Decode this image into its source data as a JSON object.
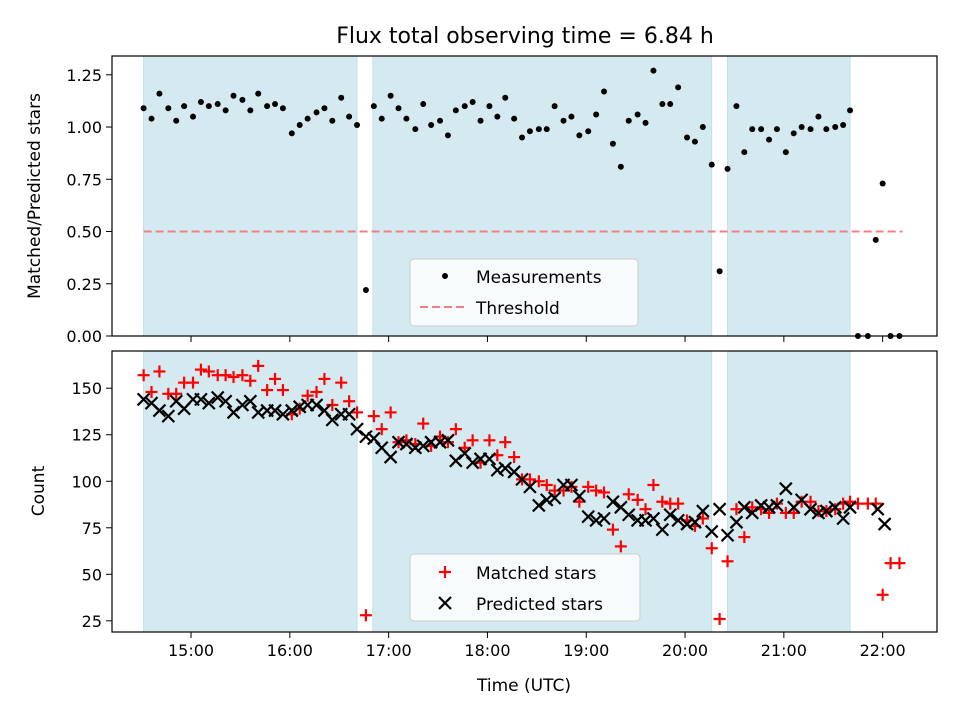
{
  "chart_data": [
    {
      "type": "scatter",
      "title": "Flux total observing time = 6.84 h",
      "ylabel": "Matched/Predicted stars",
      "xlabel": "",
      "xlim": [
        14.2,
        22.55
      ],
      "ylim": [
        0.0,
        1.34
      ],
      "yticks": [
        0.0,
        0.25,
        0.5,
        0.75,
        1.0,
        1.25
      ],
      "ytick_labels": [
        "0.00",
        "0.25",
        "0.50",
        "0.75",
        "1.00",
        "1.25"
      ],
      "xticks": [
        15,
        16,
        17,
        18,
        19,
        20,
        21,
        22
      ],
      "xtick_labels": [
        "",
        "",
        "",
        "",
        "",
        "",
        "",
        ""
      ],
      "shaded_intervals": [
        [
          14.52,
          16.68
        ],
        [
          16.84,
          20.27
        ],
        [
          20.43,
          21.67
        ]
      ],
      "shade_color": "#d5eaf0",
      "legend": {
        "placement": "lower-center",
        "entries": [
          "Measurements",
          "Threshold"
        ]
      },
      "series": [
        {
          "name": "Measurements",
          "color": "#000000",
          "marker": "dot",
          "x": [
            14.52,
            14.6,
            14.68,
            14.77,
            14.85,
            14.93,
            15.02,
            15.1,
            15.18,
            15.27,
            15.35,
            15.43,
            15.52,
            15.6,
            15.68,
            15.77,
            15.85,
            15.93,
            16.02,
            16.1,
            16.18,
            16.27,
            16.35,
            16.43,
            16.52,
            16.6,
            16.68,
            16.77,
            16.85,
            16.93,
            17.02,
            17.1,
            17.18,
            17.27,
            17.35,
            17.43,
            17.52,
            17.6,
            17.68,
            17.77,
            17.85,
            17.93,
            18.02,
            18.1,
            18.18,
            18.27,
            18.35,
            18.43,
            18.52,
            18.6,
            18.68,
            18.77,
            18.85,
            18.93,
            19.02,
            19.1,
            19.18,
            19.27,
            19.35,
            19.43,
            19.52,
            19.6,
            19.68,
            19.77,
            19.85,
            19.93,
            20.02,
            20.1,
            20.18,
            20.27,
            20.35,
            20.43,
            20.52,
            20.6,
            20.68,
            20.77,
            20.85,
            20.93,
            21.02,
            21.1,
            21.18,
            21.27,
            21.35,
            21.43,
            21.52,
            21.6,
            21.67,
            21.75,
            21.85,
            21.93,
            22.0,
            22.08,
            22.17
          ],
          "y": [
            1.09,
            1.04,
            1.16,
            1.09,
            1.03,
            1.1,
            1.05,
            1.12,
            1.1,
            1.11,
            1.08,
            1.15,
            1.13,
            1.08,
            1.16,
            1.1,
            1.11,
            1.09,
            0.97,
            1.01,
            1.04,
            1.07,
            1.09,
            1.03,
            1.14,
            1.05,
            1.01,
            0.22,
            1.1,
            1.04,
            1.15,
            1.09,
            1.04,
            0.99,
            1.11,
            1.01,
            1.03,
            0.96,
            1.08,
            1.1,
            1.12,
            1.03,
            1.1,
            1.05,
            1.14,
            1.04,
            0.95,
            0.98,
            0.99,
            0.99,
            1.1,
            1.03,
            1.05,
            0.96,
            0.98,
            1.06,
            1.17,
            0.92,
            0.81,
            1.03,
            1.06,
            1.02,
            1.27,
            1.11,
            1.11,
            1.19,
            0.95,
            0.93,
            1.0,
            0.82,
            0.31,
            0.8,
            1.1,
            0.88,
            0.99,
            0.99,
            0.94,
            0.99,
            0.88,
            0.97,
            1.0,
            0.99,
            1.05,
            0.99,
            1.0,
            1.01,
            1.08,
            0.0,
            0.0,
            0.46,
            0.73,
            0.0,
            0.0
          ]
        },
        {
          "name": "Threshold",
          "color": "#f08080",
          "style": "dashed",
          "x": [
            14.52,
            22.2
          ],
          "y": [
            0.5,
            0.5
          ]
        }
      ]
    },
    {
      "type": "scatter",
      "title": "",
      "ylabel": "Count",
      "xlabel": "Time (UTC)",
      "xlim": [
        14.2,
        22.55
      ],
      "ylim": [
        19,
        170
      ],
      "yticks": [
        25,
        50,
        75,
        100,
        125,
        150
      ],
      "ytick_labels": [
        "25",
        "50",
        "75",
        "100",
        "125",
        "150"
      ],
      "xticks": [
        15,
        16,
        17,
        18,
        19,
        20,
        21,
        22
      ],
      "xtick_labels": [
        "15:00",
        "16:00",
        "17:00",
        "18:00",
        "19:00",
        "20:00",
        "21:00",
        "22:00"
      ],
      "shaded_intervals": [
        [
          14.52,
          16.68
        ],
        [
          16.84,
          20.27
        ],
        [
          20.43,
          21.67
        ]
      ],
      "shade_color": "#d5eaf0",
      "legend": {
        "placement": "lower-center",
        "entries": [
          "Matched stars",
          "Predicted stars"
        ]
      },
      "series": [
        {
          "name": "Matched stars",
          "color": "#ff0000",
          "marker": "plus",
          "x": [
            14.52,
            14.6,
            14.68,
            14.77,
            14.85,
            14.93,
            15.02,
            15.1,
            15.18,
            15.27,
            15.35,
            15.43,
            15.52,
            15.6,
            15.68,
            15.77,
            15.85,
            15.93,
            16.02,
            16.1,
            16.18,
            16.27,
            16.35,
            16.43,
            16.52,
            16.6,
            16.68,
            16.77,
            16.85,
            16.93,
            17.02,
            17.1,
            17.18,
            17.27,
            17.35,
            17.43,
            17.52,
            17.6,
            17.68,
            17.77,
            17.85,
            17.93,
            18.02,
            18.1,
            18.18,
            18.27,
            18.35,
            18.43,
            18.52,
            18.6,
            18.68,
            18.77,
            18.85,
            18.93,
            19.02,
            19.1,
            19.18,
            19.27,
            19.35,
            19.43,
            19.52,
            19.6,
            19.68,
            19.77,
            19.85,
            19.93,
            20.02,
            20.1,
            20.18,
            20.27,
            20.35,
            20.43,
            20.52,
            20.6,
            20.68,
            20.77,
            20.85,
            20.93,
            21.02,
            21.1,
            21.18,
            21.27,
            21.35,
            21.43,
            21.52,
            21.6,
            21.67,
            21.75,
            21.85,
            21.93,
            22.0,
            22.08,
            22.17
          ],
          "y": [
            157,
            148,
            159,
            147,
            147,
            153,
            153,
            160,
            159,
            157,
            157,
            156,
            157,
            154,
            162,
            149,
            155,
            149,
            136,
            139,
            146,
            148,
            155,
            141,
            153,
            143,
            137,
            28,
            135,
            128,
            137,
            121,
            122,
            120,
            131,
            119,
            124,
            121,
            128,
            118,
            122,
            110,
            122,
            114,
            121,
            113,
            101,
            101,
            100,
            98,
            95,
            95,
            97,
            89,
            97,
            95,
            94,
            74,
            65,
            93,
            90,
            85,
            98,
            89,
            88,
            88,
            79,
            76,
            80,
            64,
            26,
            57,
            85,
            70,
            86,
            85,
            83,
            88,
            83,
            83,
            89,
            89,
            84,
            84,
            85,
            88,
            89,
            88,
            88,
            88,
            39,
            56,
            56
          ]
        },
        {
          "name": "Predicted stars",
          "color": "#000000",
          "marker": "x",
          "x": [
            14.52,
            14.6,
            14.68,
            14.77,
            14.85,
            14.93,
            15.02,
            15.1,
            15.18,
            15.27,
            15.35,
            15.43,
            15.52,
            15.6,
            15.68,
            15.77,
            15.85,
            15.93,
            16.02,
            16.1,
            16.18,
            16.27,
            16.35,
            16.43,
            16.52,
            16.6,
            16.68,
            16.77,
            16.85,
            16.93,
            17.02,
            17.1,
            17.18,
            17.27,
            17.35,
            17.43,
            17.52,
            17.6,
            17.68,
            17.77,
            17.85,
            17.93,
            18.02,
            18.1,
            18.18,
            18.27,
            18.35,
            18.43,
            18.52,
            18.6,
            18.68,
            18.77,
            18.85,
            18.93,
            19.02,
            19.1,
            19.18,
            19.27,
            19.35,
            19.43,
            19.52,
            19.6,
            19.68,
            19.77,
            19.85,
            19.93,
            20.02,
            20.1,
            20.18,
            20.27,
            20.35,
            20.43,
            20.52,
            20.6,
            20.68,
            20.77,
            20.85,
            20.93,
            21.02,
            21.1,
            21.18,
            21.27,
            21.35,
            21.43,
            21.52,
            21.6,
            21.67,
            21.95,
            22.02
          ],
          "y": [
            144,
            142,
            138,
            135,
            143,
            139,
            144,
            144,
            142,
            145,
            143,
            137,
            141,
            143,
            137,
            138,
            138,
            136,
            138,
            140,
            141,
            141,
            138,
            133,
            136,
            136,
            128,
            124,
            123,
            118,
            113,
            121,
            120,
            118,
            119,
            121,
            121,
            122,
            111,
            115,
            110,
            112,
            112,
            106,
            107,
            105,
            101,
            97,
            87,
            90,
            91,
            98,
            98,
            92,
            81,
            79,
            80,
            89,
            86,
            82,
            79,
            79,
            80,
            74,
            82,
            79,
            77,
            78,
            84,
            73,
            85,
            71,
            78,
            86,
            83,
            87,
            86,
            87,
            96,
            86,
            90,
            85,
            83,
            84,
            86,
            80,
            86,
            85,
            77
          ]
        }
      ]
    }
  ]
}
